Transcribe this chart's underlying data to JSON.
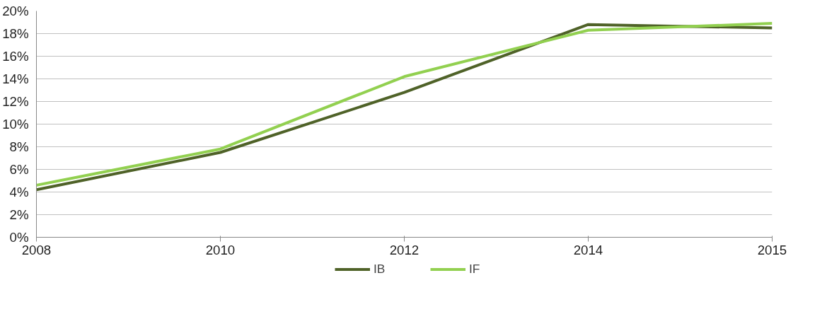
{
  "chart_data": {
    "type": "line",
    "categories": [
      "2008",
      "2010",
      "2012",
      "2014",
      "2015"
    ],
    "series": [
      {
        "name": "IB",
        "color": "#4f6228",
        "values": [
          4.2,
          7.5,
          12.8,
          18.8,
          18.5
        ]
      },
      {
        "name": "IF",
        "color": "#92d050",
        "values": [
          4.6,
          7.8,
          14.2,
          18.3,
          18.9
        ]
      }
    ],
    "ylim": [
      0,
      20
    ],
    "yticks": [
      {
        "value": 0,
        "label": "0%"
      },
      {
        "value": 2,
        "label": "2%"
      },
      {
        "value": 4,
        "label": "4%"
      },
      {
        "value": 6,
        "label": "6%"
      },
      {
        "value": 8,
        "label": "8%"
      },
      {
        "value": 10,
        "label": "10%"
      },
      {
        "value": 12,
        "label": "12%"
      },
      {
        "value": 14,
        "label": "14%"
      },
      {
        "value": 16,
        "label": "16%"
      },
      {
        "value": 18,
        "label": "18%"
      },
      {
        "value": 20,
        "label": "20%"
      }
    ],
    "grid": "y",
    "legend": "bottom",
    "marker": "none",
    "line_style": "solid"
  }
}
